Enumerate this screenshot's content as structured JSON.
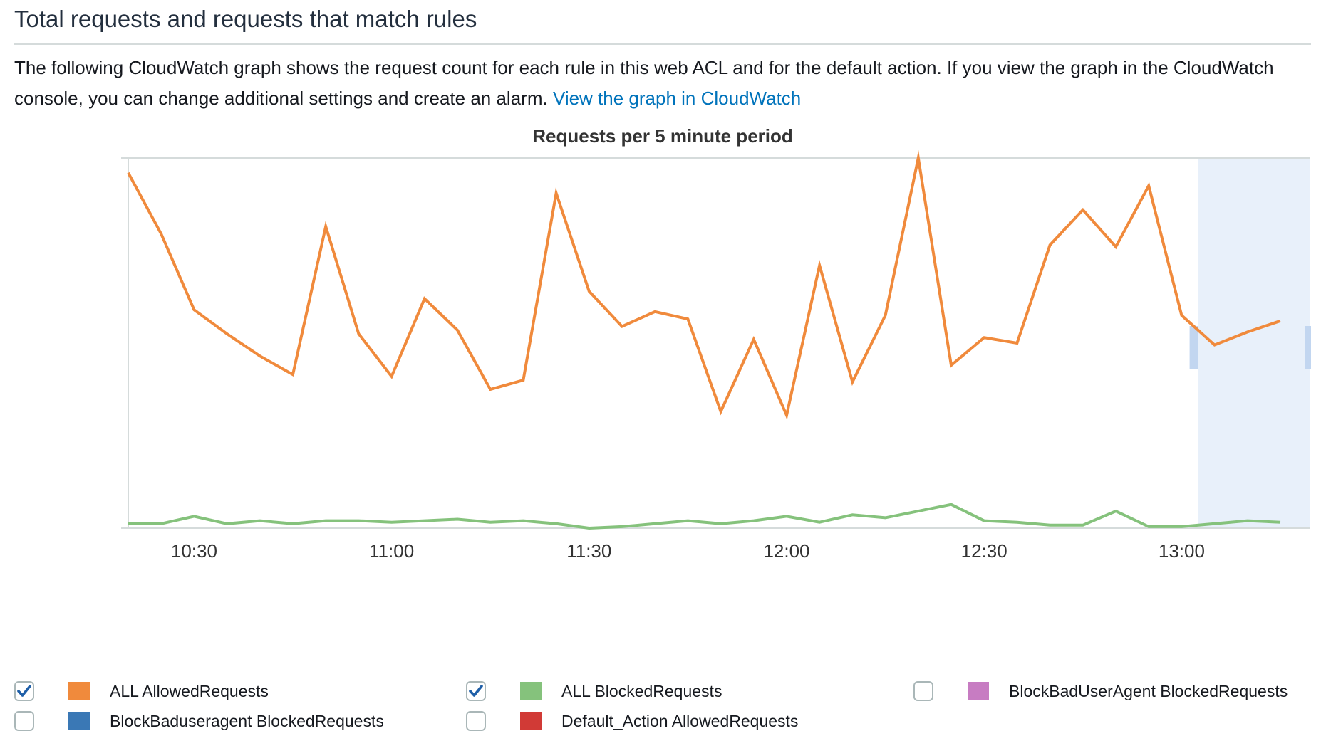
{
  "header": {
    "title": "Total requests and requests that match rules",
    "description": "The following CloudWatch graph shows the request count for each rule in this web ACL and for the default action. If you view the graph in the CloudWatch console, you can change additional settings and create an alarm.",
    "link_text": "View the graph in CloudWatch"
  },
  "colors": {
    "allowed": "#f08a3c",
    "blocked": "#85c27c",
    "highlight": "#e8f0fa",
    "handle": "#c2d6f0",
    "axis": "#d5dbdb"
  },
  "chart_data": {
    "type": "line",
    "title": "Requests per 5 minute period",
    "xlabel": "",
    "ylabel": "",
    "x_ticks": [
      "10:30",
      "11:00",
      "11:30",
      "12:00",
      "12:30",
      "13:00"
    ],
    "x_start": "10:20",
    "x_step_minutes": 5,
    "highlight_from": "13:05",
    "ylim": [
      0,
      100
    ],
    "grid": false,
    "series": [
      {
        "name": "ALL AllowedRequests",
        "color": "#f08a3c",
        "values": [
          96,
          79.5,
          59,
          52.5,
          46.5,
          41.5,
          81.5,
          52.5,
          41,
          62,
          53.5,
          37.5,
          40,
          90.5,
          64,
          54.5,
          58.5,
          56.5,
          31.5,
          51,
          30.5,
          71,
          39.5,
          57.5,
          100,
          44,
          51.5,
          50,
          76.5,
          86,
          76,
          92.5,
          57.5,
          49.5,
          53,
          56
        ]
      },
      {
        "name": "ALL BlockedRequests",
        "color": "#85c27c",
        "values": [
          1.2,
          1.2,
          3.2,
          1.2,
          2.0,
          1.2,
          2.0,
          2.0,
          1.6,
          2.0,
          2.4,
          1.6,
          2.0,
          1.2,
          0,
          0.4,
          1.2,
          2.0,
          1.2,
          2.0,
          3.2,
          1.6,
          3.6,
          2.8,
          4.6,
          6.4,
          2.0,
          1.6,
          0.8,
          0.8,
          4.6,
          0.4,
          0.4,
          1.2,
          2.0,
          1.6
        ]
      }
    ]
  },
  "legend": {
    "items": [
      {
        "label": "ALL AllowedRequests",
        "checked": true,
        "color": "#f08a3c"
      },
      {
        "label": "ALL BlockedRequests",
        "checked": true,
        "color": "#85c27c"
      },
      {
        "label": "BlockBadUserAgent BlockedRequests",
        "checked": false,
        "color": "#c77cc2"
      },
      {
        "label": "BlockBaduseragent BlockedRequests",
        "checked": false,
        "color": "#3a78b5"
      },
      {
        "label": "Default_Action AllowedRequests",
        "checked": false,
        "color": "#d13a36"
      }
    ]
  }
}
